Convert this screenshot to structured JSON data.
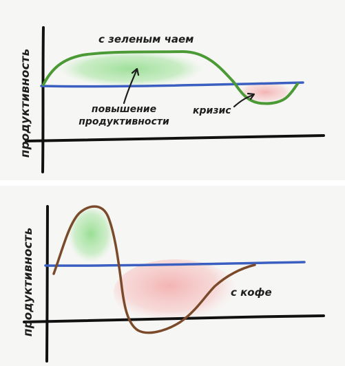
{
  "top_chart": {
    "y_axis_label": "продуктивность",
    "label_green_tea": "с зеленым чаем",
    "label_increase_line1": "повышение",
    "label_increase_line2": "продуктивности",
    "label_crisis": "кризис"
  },
  "bottom_chart": {
    "y_axis_label": "продуктивность",
    "label_coffee": "с кофе"
  },
  "colors": {
    "axis": "#111111",
    "baseline": "#3a5fc0",
    "tea_curve": "#4c9a36",
    "coffee_curve": "#7a4a2a",
    "gain_fill": "#8fdc8a",
    "loss_fill": "#f2a3a3"
  }
}
